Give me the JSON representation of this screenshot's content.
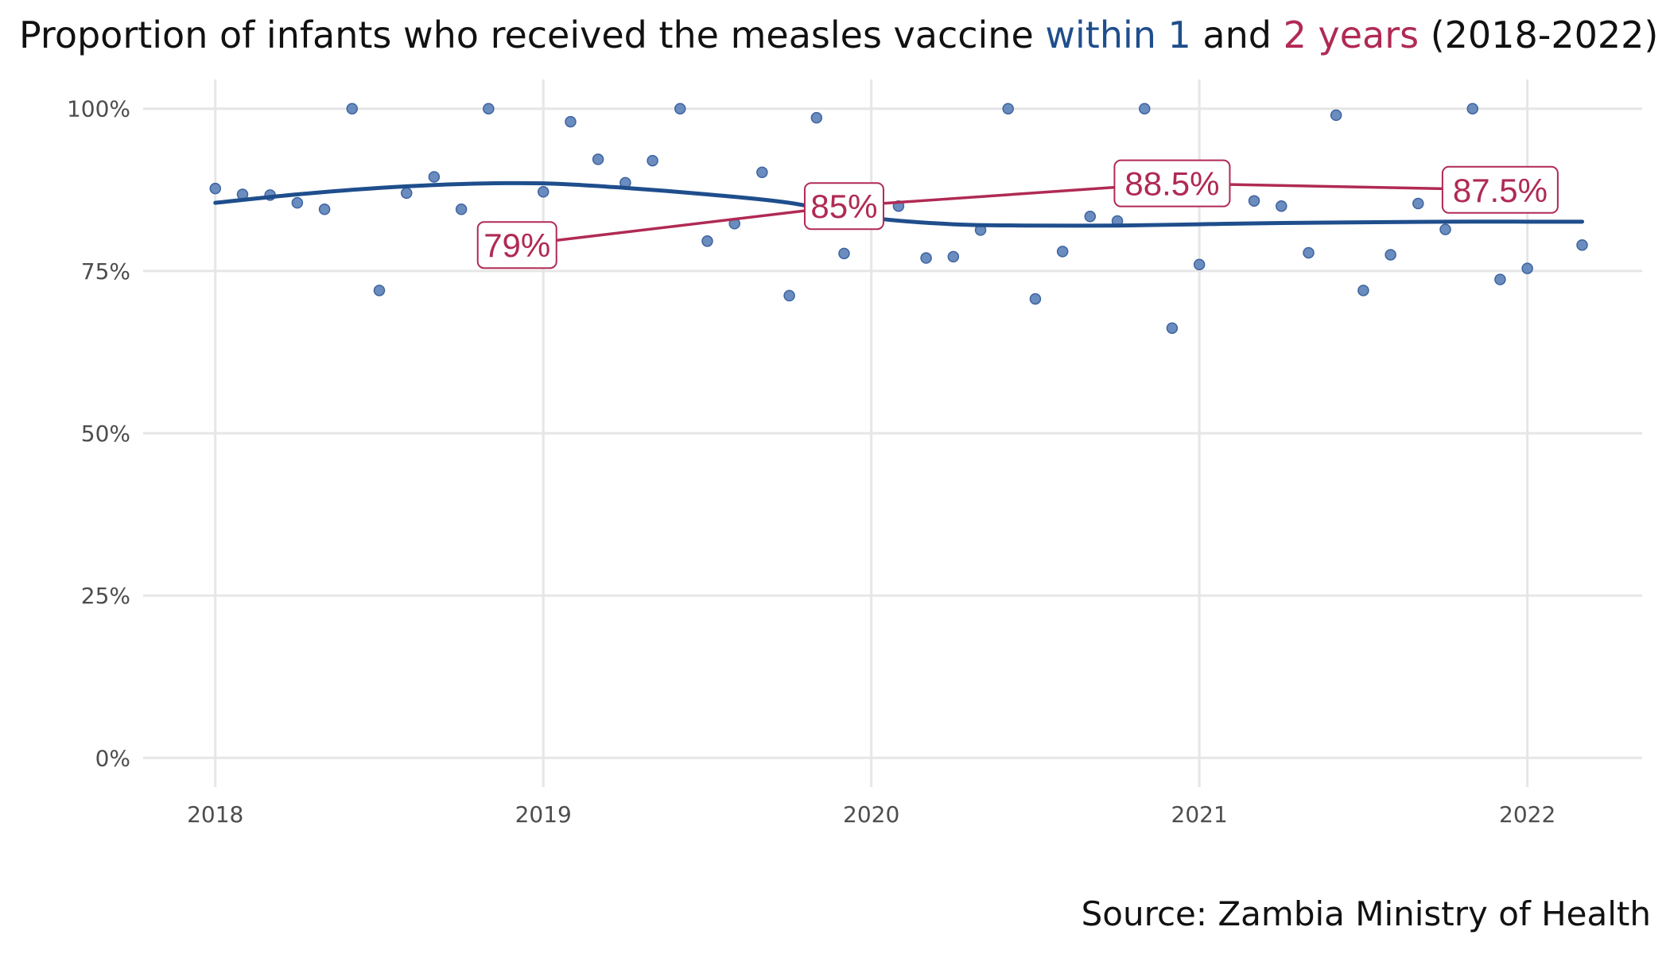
{
  "colors": {
    "within1": "#1f4e8c",
    "within2": "#b02a54",
    "points": "#5b80b8",
    "grid": "#e6e6e6",
    "text": "#111111",
    "tick": "#4d4d4d"
  },
  "chart_data": {
    "type": "scatter",
    "title_parts": [
      {
        "text": "Proportion of infants who received the measles vaccine ",
        "color": "text"
      },
      {
        "text": "within 1",
        "color": "within1"
      },
      {
        "text": " and ",
        "color": "text"
      },
      {
        "text": "2 years",
        "color": "within2"
      },
      {
        "text": " (2018-2022)",
        "color": "text"
      }
    ],
    "source": "Source: Zambia Ministry of Health",
    "x_range": [
      2017.78,
      2022.35
    ],
    "y_range": [
      -0.045,
      1.045
    ],
    "x_ticks": [
      {
        "value": 2018,
        "label": "2018"
      },
      {
        "value": 2019,
        "label": "2019"
      },
      {
        "value": 2020,
        "label": "2020"
      },
      {
        "value": 2021,
        "label": "2021"
      },
      {
        "value": 2022,
        "label": "2022"
      }
    ],
    "y_ticks": [
      {
        "value": 0,
        "label": "0%"
      },
      {
        "value": 0.25,
        "label": "25%"
      },
      {
        "value": 0.5,
        "label": "50%"
      },
      {
        "value": 0.75,
        "label": "75%"
      },
      {
        "value": 1.0,
        "label": "100%"
      }
    ],
    "grid": true,
    "points": [
      {
        "x": 2018.0,
        "y": 0.877
      },
      {
        "x": 2018.083,
        "y": 0.868
      },
      {
        "x": 2018.167,
        "y": 0.867
      },
      {
        "x": 2018.25,
        "y": 0.855
      },
      {
        "x": 2018.333,
        "y": 0.845
      },
      {
        "x": 2018.417,
        "y": 1.0
      },
      {
        "x": 2018.5,
        "y": 0.72
      },
      {
        "x": 2018.583,
        "y": 0.87
      },
      {
        "x": 2018.667,
        "y": 0.895
      },
      {
        "x": 2018.75,
        "y": 0.845
      },
      {
        "x": 2018.833,
        "y": 1.0
      },
      {
        "x": 2019.0,
        "y": 0.872
      },
      {
        "x": 2019.083,
        "y": 0.98
      },
      {
        "x": 2019.167,
        "y": 0.922
      },
      {
        "x": 2019.25,
        "y": 0.886
      },
      {
        "x": 2019.333,
        "y": 0.92
      },
      {
        "x": 2019.417,
        "y": 1.0
      },
      {
        "x": 2019.5,
        "y": 0.796
      },
      {
        "x": 2019.583,
        "y": 0.823
      },
      {
        "x": 2019.667,
        "y": 0.902
      },
      {
        "x": 2019.75,
        "y": 0.712
      },
      {
        "x": 2019.833,
        "y": 0.986
      },
      {
        "x": 2019.917,
        "y": 0.777
      },
      {
        "x": 2020.083,
        "y": 0.85
      },
      {
        "x": 2020.167,
        "y": 0.77
      },
      {
        "x": 2020.25,
        "y": 0.772
      },
      {
        "x": 2020.333,
        "y": 0.813
      },
      {
        "x": 2020.417,
        "y": 1.0
      },
      {
        "x": 2020.5,
        "y": 0.707
      },
      {
        "x": 2020.583,
        "y": 0.78
      },
      {
        "x": 2020.667,
        "y": 0.834
      },
      {
        "x": 2020.75,
        "y": 0.827
      },
      {
        "x": 2020.833,
        "y": 1.0
      },
      {
        "x": 2020.917,
        "y": 0.662
      },
      {
        "x": 2021.0,
        "y": 0.76
      },
      {
        "x": 2021.167,
        "y": 0.858
      },
      {
        "x": 2021.25,
        "y": 0.85
      },
      {
        "x": 2021.333,
        "y": 0.778
      },
      {
        "x": 2021.417,
        "y": 0.99
      },
      {
        "x": 2021.5,
        "y": 0.72
      },
      {
        "x": 2021.583,
        "y": 0.775
      },
      {
        "x": 2021.667,
        "y": 0.854
      },
      {
        "x": 2021.75,
        "y": 0.814
      },
      {
        "x": 2021.833,
        "y": 1.0
      },
      {
        "x": 2021.917,
        "y": 0.737
      },
      {
        "x": 2022.0,
        "y": 0.754
      },
      {
        "x": 2022.167,
        "y": 0.79
      }
    ],
    "series": [
      {
        "key": "within1",
        "type": "smooth",
        "x": [
          2018.0,
          2018.25,
          2018.5,
          2018.75,
          2019.0,
          2019.25,
          2019.5,
          2019.75,
          2020.0,
          2020.25,
          2020.5,
          2020.75,
          2021.0,
          2021.25,
          2021.5,
          2021.75,
          2022.0,
          2022.167
        ],
        "y": [
          0.855,
          0.868,
          0.878,
          0.884,
          0.885,
          0.878,
          0.868,
          0.855,
          0.832,
          0.822,
          0.82,
          0.82,
          0.822,
          0.824,
          0.825,
          0.826,
          0.826,
          0.826
        ]
      },
      {
        "key": "within2",
        "type": "line",
        "x": [
          2018.92,
          2019.917,
          2020.917,
          2021.917
        ],
        "y": [
          0.79,
          0.85,
          0.885,
          0.875
        ]
      }
    ],
    "annotations": [
      {
        "x": 2018.92,
        "y": 0.79,
        "label": "79%"
      },
      {
        "x": 2019.917,
        "y": 0.85,
        "label": "85%"
      },
      {
        "x": 2020.917,
        "y": 0.885,
        "label": "88.5%"
      },
      {
        "x": 2021.917,
        "y": 0.875,
        "label": "87.5%"
      }
    ]
  }
}
